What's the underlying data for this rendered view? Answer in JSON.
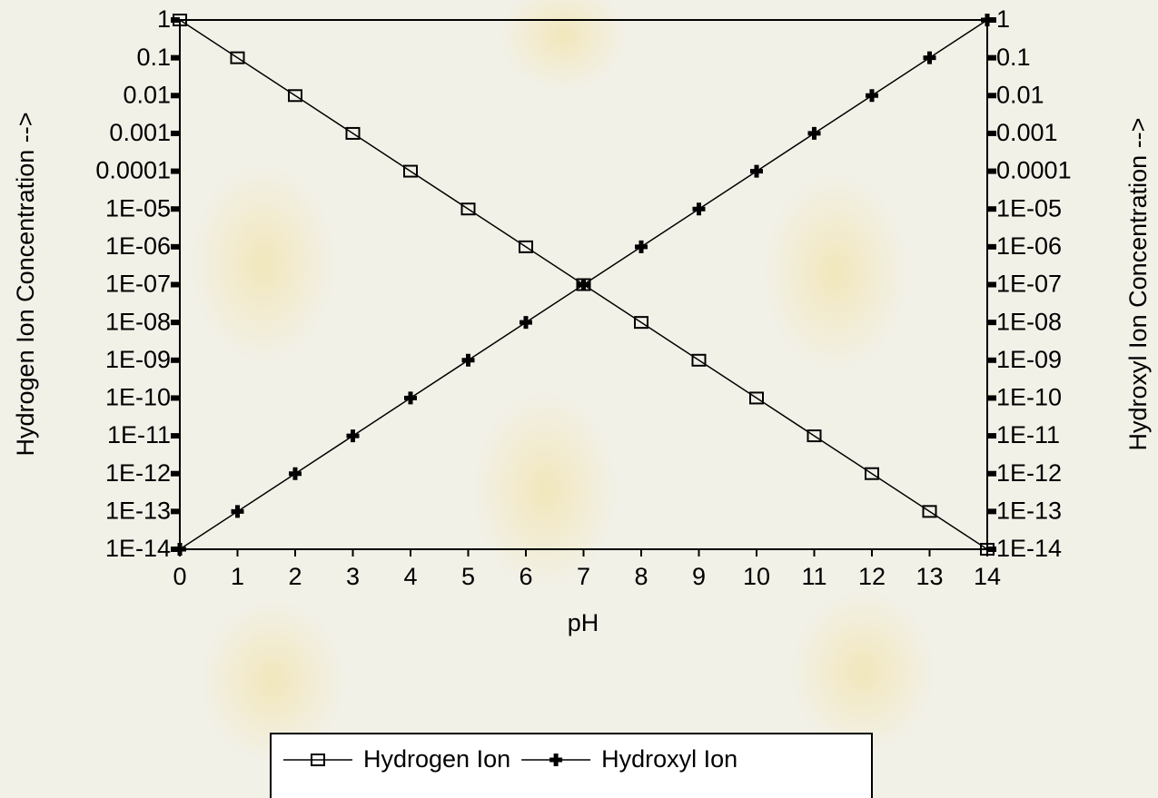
{
  "chart_data": {
    "type": "line",
    "x": [
      0,
      1,
      2,
      3,
      4,
      5,
      6,
      7,
      8,
      9,
      10,
      11,
      12,
      13,
      14
    ],
    "xlabel": "pH",
    "ylabel": "Hydrogen Ion Concentration -->",
    "y2label": "Hydroxyl Ion Concentration -->",
    "xlim": [
      0,
      14
    ],
    "xticks": [
      0,
      1,
      2,
      3,
      4,
      5,
      6,
      7,
      8,
      9,
      10,
      11,
      12,
      13,
      14
    ],
    "ylim": [
      1e-14,
      1
    ],
    "y2lim": [
      1e-14,
      1
    ],
    "ylog": true,
    "y2log": true,
    "yticks": [
      1,
      0.1,
      0.01,
      0.001,
      0.0001,
      {
        "value": 1e-05,
        "label": "1E-05"
      },
      {
        "value": 1e-06,
        "label": "1E-06"
      },
      {
        "value": 1e-07,
        "label": "1E-07"
      },
      {
        "value": 1e-08,
        "label": "1E-08"
      },
      {
        "value": 1e-09,
        "label": "1E-09"
      },
      {
        "value": 1e-10,
        "label": "1E-10"
      },
      {
        "value": 1e-11,
        "label": "1E-11"
      },
      {
        "value": 1e-12,
        "label": "1E-12"
      },
      {
        "value": 1e-13,
        "label": "1E-13"
      },
      {
        "value": 1e-14,
        "label": "1E-14"
      }
    ],
    "y2ticks": [
      1,
      0.1,
      0.01,
      0.001,
      0.0001,
      {
        "value": 1e-05,
        "label": "1E-05"
      },
      {
        "value": 1e-06,
        "label": "1E-06"
      },
      {
        "value": 1e-07,
        "label": "1E-07"
      },
      {
        "value": 1e-08,
        "label": "1E-08"
      },
      {
        "value": 1e-09,
        "label": "1E-09"
      },
      {
        "value": 1e-10,
        "label": "1E-10"
      },
      {
        "value": 1e-11,
        "label": "1E-11"
      },
      {
        "value": 1e-12,
        "label": "1E-12"
      },
      {
        "value": 1e-13,
        "label": "1E-13"
      },
      {
        "value": 1e-14,
        "label": "1E-14"
      }
    ],
    "legend": "bottom",
    "series": [
      {
        "name": "Hydrogen Ion",
        "color": "#000000",
        "marker": "square",
        "values": [
          1,
          0.1,
          0.01,
          0.001,
          0.0001,
          1e-05,
          1e-06,
          1e-07,
          1e-08,
          1e-09,
          1e-10,
          1e-11,
          1e-12,
          1e-13,
          1e-14
        ]
      },
      {
        "name": "Hydroxyl Ion",
        "color": "#000000",
        "marker": "plus",
        "axis": "y2",
        "values": [
          1e-14,
          1e-13,
          1e-12,
          1e-11,
          1e-10,
          1e-09,
          1e-08,
          1e-07,
          1e-06,
          1e-05,
          0.0001,
          0.001,
          0.01,
          0.1,
          1
        ]
      }
    ]
  }
}
